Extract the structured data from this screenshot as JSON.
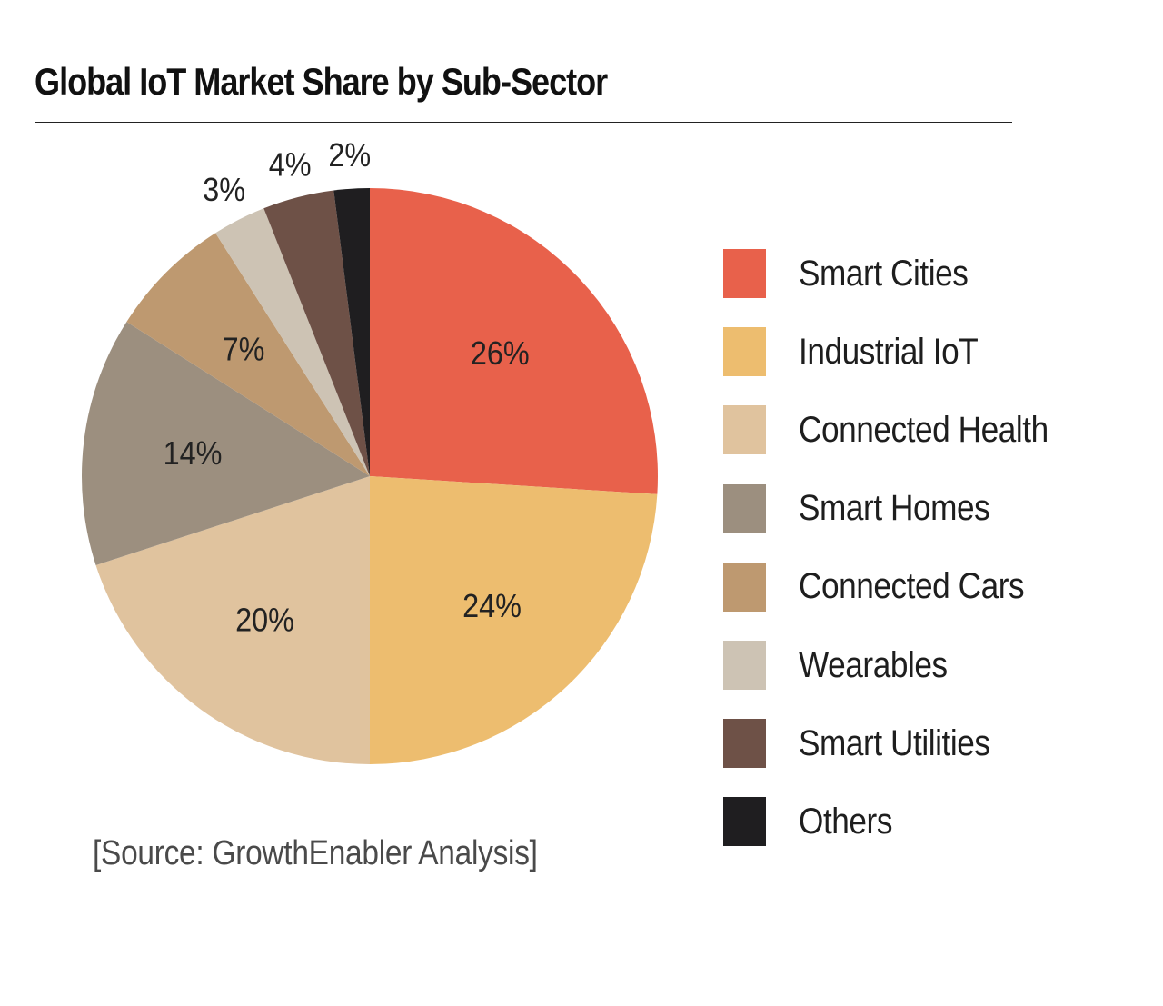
{
  "header": {
    "title": "Global IoT Market Share by Sub-Sector"
  },
  "footer": {
    "source": "[Source: GrowthEnabler Analysis]"
  },
  "chart_data": {
    "type": "pie",
    "title": "Global IoT Market Share by Sub-Sector",
    "legend_position": "right",
    "start_angle": "12 o'clock",
    "direction": "clockwise",
    "label_color": "#222222",
    "slices": [
      {
        "label": "Smart Cities",
        "value": 26,
        "value_label": "26%",
        "color": "#E8614B"
      },
      {
        "label": "Industrial IoT",
        "value": 24,
        "value_label": "24%",
        "color": "#EDBD6F"
      },
      {
        "label": "Connected Health",
        "value": 20,
        "value_label": "20%",
        "color": "#E0C39E"
      },
      {
        "label": "Smart Homes",
        "value": 14,
        "value_label": "14%",
        "color": "#9C8F7F"
      },
      {
        "label": "Connected Cars",
        "value": 7,
        "value_label": "7%",
        "color": "#BE9970"
      },
      {
        "label": "Wearables",
        "value": 3,
        "value_label": "3%",
        "color": "#CDC3B4"
      },
      {
        "label": "Smart Utilities",
        "value": 4,
        "value_label": "4%",
        "color": "#6E5147"
      },
      {
        "label": "Others",
        "value": 2,
        "value_label": "2%",
        "color": "#1F1E20"
      }
    ]
  }
}
